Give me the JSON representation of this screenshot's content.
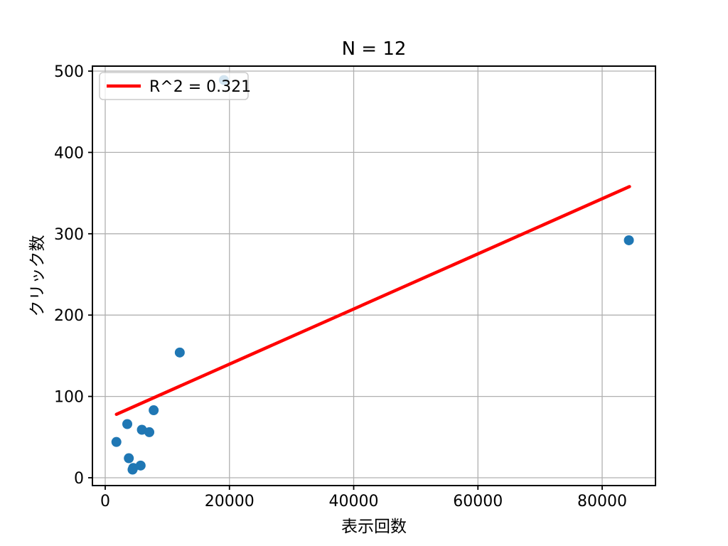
{
  "chart_data": {
    "type": "scatter",
    "title": "N = 12",
    "xlabel": "表示回数",
    "ylabel": "クリック数",
    "xlim": [
      -2060,
      88580
    ],
    "ylim": [
      -10,
      506
    ],
    "x_ticks": [
      0,
      20000,
      40000,
      60000,
      80000
    ],
    "y_ticks": [
      0,
      100,
      200,
      300,
      400,
      500
    ],
    "grid": true,
    "n_points": 12,
    "points": [
      [
        1800,
        44
      ],
      [
        3550,
        66
      ],
      [
        3800,
        24
      ],
      [
        4400,
        10
      ],
      [
        4500,
        12
      ],
      [
        5700,
        15
      ],
      [
        5900,
        59
      ],
      [
        7100,
        56
      ],
      [
        7800,
        83
      ],
      [
        12000,
        154
      ],
      [
        19100,
        489
      ],
      [
        84300,
        292
      ]
    ],
    "regression_line": {
      "x1": 1800,
      "y1": 78,
      "x2": 84400,
      "y2": 358
    },
    "legend": {
      "label": "R^2 = 0.321",
      "position": "upper left"
    },
    "colors": {
      "point": "#1f77b4",
      "line": "#ff0000",
      "grid": "#b0b0b0",
      "spine": "#000000",
      "text": "#000000",
      "legend_border": "#cccccc"
    }
  }
}
